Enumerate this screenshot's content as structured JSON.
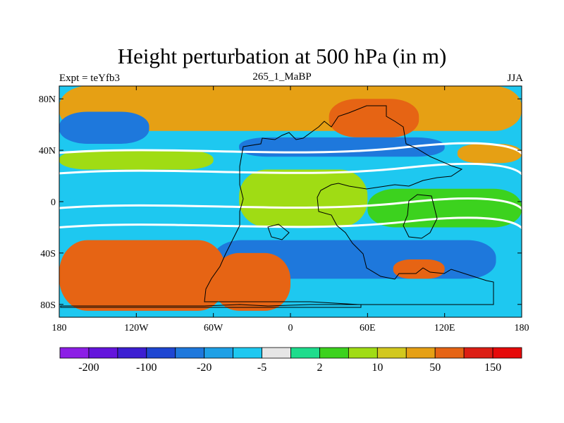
{
  "chart_data": {
    "type": "heatmap",
    "title": "Height perturbation at 500 hPa (in m)",
    "left_label": "Expt = teYfb3",
    "center_label": "265_1_MaBP",
    "right_label": "JJA",
    "xlim": [
      -180,
      180
    ],
    "ylim": [
      -90,
      90
    ],
    "x_ticks": [
      {
        "value": -180,
        "label": "180"
      },
      {
        "value": -120,
        "label": "120W"
      },
      {
        "value": -60,
        "label": "60W"
      },
      {
        "value": 0,
        "label": "0"
      },
      {
        "value": 60,
        "label": "60E"
      },
      {
        "value": 120,
        "label": "120E"
      },
      {
        "value": 180,
        "label": "180"
      }
    ],
    "y_ticks": [
      {
        "value": 80,
        "label": "80N"
      },
      {
        "value": 40,
        "label": "40N"
      },
      {
        "value": 0,
        "label": "0"
      },
      {
        "value": -40,
        "label": "40S"
      },
      {
        "value": -80,
        "label": "80S"
      }
    ],
    "contour_levels": [
      -200,
      -150,
      -100,
      -50,
      -20,
      -10,
      -5,
      -2,
      2,
      5,
      10,
      20,
      50,
      100,
      150,
      200
    ],
    "colorbar_labels": [
      {
        "level": -200,
        "label": "-200"
      },
      {
        "level": -100,
        "label": "-100"
      },
      {
        "level": -20,
        "label": "-20"
      },
      {
        "level": -5,
        "label": "-5"
      },
      {
        "level": 2,
        "label": "2"
      },
      {
        "level": 10,
        "label": "10"
      },
      {
        "level": 50,
        "label": "50"
      },
      {
        "level": 150,
        "label": "150"
      }
    ],
    "colors": [
      "#8c1ee6",
      "#6414dc",
      "#3c1ed2",
      "#1e46d2",
      "#1e78dc",
      "#1ea0e6",
      "#1ec8f0",
      "#e6e6e6",
      "#1edc8c",
      "#3cd21e",
      "#a0dc14",
      "#d2c81e",
      "#e6a014",
      "#e66414",
      "#dc1e14",
      "#e60a0a"
    ],
    "field_description": "mean anomaly bands by latitude/longitude",
    "bands": [
      {
        "lat": [
          55,
          90
        ],
        "lon": [
          -180,
          180
        ],
        "value": 30
      },
      {
        "lat": [
          45,
          70
        ],
        "lon": [
          -180,
          -110
        ],
        "value": -50
      },
      {
        "lat": [
          50,
          80
        ],
        "lon": [
          30,
          100
        ],
        "value": 80
      },
      {
        "lat": [
          35,
          50
        ],
        "lon": [
          -40,
          120
        ],
        "value": -50
      },
      {
        "lat": [
          25,
          40
        ],
        "lon": [
          -180,
          -60
        ],
        "value": 8
      },
      {
        "lat": [
          30,
          45
        ],
        "lon": [
          130,
          180
        ],
        "value": 30
      },
      {
        "lat": [
          0,
          25
        ],
        "lon": [
          -180,
          -30
        ],
        "value": -10
      },
      {
        "lat": [
          -20,
          25
        ],
        "lon": [
          -40,
          60
        ],
        "value": 8
      },
      {
        "lat": [
          -20,
          10
        ],
        "lon": [
          60,
          180
        ],
        "value": 4
      },
      {
        "lat": [
          -60,
          -30
        ],
        "lon": [
          -60,
          160
        ],
        "value": -50
      },
      {
        "lat": [
          -85,
          -30
        ],
        "lon": [
          -180,
          -50
        ],
        "value": 60
      },
      {
        "lat": [
          -85,
          -40
        ],
        "lon": [
          -60,
          0
        ],
        "value": 80
      },
      {
        "lat": [
          -60,
          -45
        ],
        "lon": [
          80,
          120
        ],
        "value": 50
      }
    ]
  }
}
